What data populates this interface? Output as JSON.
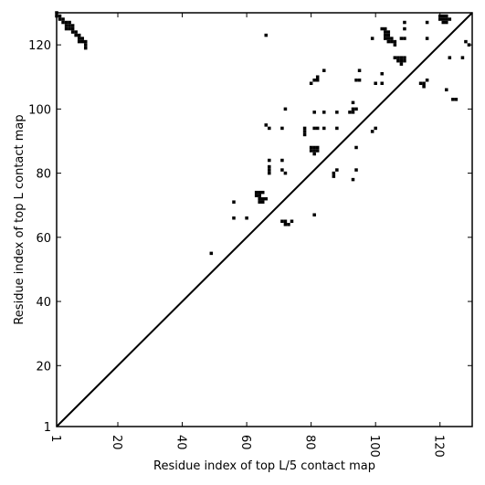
{
  "chart_data": {
    "type": "heatmap",
    "xlabel": "Residue index of top L/5 contact map",
    "ylabel": "Residue index of top L contact map",
    "xlim": [
      1,
      130
    ],
    "ylim": [
      1,
      130
    ],
    "x_ticks": [
      {
        "value": 1,
        "label": "1"
      },
      {
        "value": 20,
        "label": "20"
      },
      {
        "value": 40,
        "label": "40"
      },
      {
        "value": 60,
        "label": "60"
      },
      {
        "value": 80,
        "label": "80"
      },
      {
        "value": 100,
        "label": "100"
      },
      {
        "value": 120,
        "label": "120"
      }
    ],
    "y_ticks": [
      {
        "value": 1,
        "label": "1"
      },
      {
        "value": 20,
        "label": "20"
      },
      {
        "value": 40,
        "label": "40"
      },
      {
        "value": 60,
        "label": "60"
      },
      {
        "value": 80,
        "label": "80"
      },
      {
        "value": 100,
        "label": "100"
      },
      {
        "value": 120,
        "label": "120"
      }
    ],
    "diagonal": true,
    "color": "#000000",
    "contacts": [
      [
        1,
        130
      ],
      [
        1,
        129
      ],
      [
        2,
        129
      ],
      [
        2,
        128
      ],
      [
        3,
        128
      ],
      [
        3,
        127
      ],
      [
        4,
        127
      ],
      [
        5,
        127
      ],
      [
        4,
        126
      ],
      [
        5,
        126
      ],
      [
        6,
        126
      ],
      [
        4,
        125
      ],
      [
        5,
        125
      ],
      [
        6,
        125
      ],
      [
        6,
        124
      ],
      [
        7,
        124
      ],
      [
        7,
        123
      ],
      [
        8,
        123
      ],
      [
        8,
        122
      ],
      [
        9,
        122
      ],
      [
        8,
        121
      ],
      [
        9,
        121
      ],
      [
        10,
        121
      ],
      [
        10,
        120
      ],
      [
        10,
        119
      ],
      [
        49,
        55
      ],
      [
        56,
        71
      ],
      [
        56,
        66
      ],
      [
        60,
        66
      ],
      [
        63,
        74
      ],
      [
        64,
        74
      ],
      [
        65,
        74
      ],
      [
        63,
        73
      ],
      [
        64,
        73
      ],
      [
        64,
        72
      ],
      [
        65,
        72
      ],
      [
        66,
        72
      ],
      [
        64,
        71
      ],
      [
        65,
        71
      ],
      [
        66,
        123
      ],
      [
        66,
        95
      ],
      [
        67,
        94
      ],
      [
        67,
        84
      ],
      [
        67,
        82
      ],
      [
        67,
        81
      ],
      [
        67,
        80
      ],
      [
        71,
        94
      ],
      [
        71,
        84
      ],
      [
        71,
        81
      ],
      [
        72,
        80
      ],
      [
        72,
        100
      ],
      [
        71,
        65
      ],
      [
        72,
        65
      ],
      [
        72,
        64
      ],
      [
        73,
        64
      ],
      [
        74,
        65
      ],
      [
        78,
        94
      ],
      [
        78,
        93
      ],
      [
        78,
        92
      ],
      [
        80,
        88
      ],
      [
        81,
        88
      ],
      [
        82,
        88
      ],
      [
        80,
        87
      ],
      [
        81,
        87
      ],
      [
        82,
        87
      ],
      [
        81,
        86
      ],
      [
        80,
        108
      ],
      [
        81,
        109
      ],
      [
        82,
        109
      ],
      [
        82,
        110
      ],
      [
        84,
        112
      ],
      [
        81,
        99
      ],
      [
        84,
        99
      ],
      [
        81,
        94
      ],
      [
        82,
        94
      ],
      [
        84,
        94
      ],
      [
        81,
        67
      ],
      [
        87,
        80
      ],
      [
        87,
        79
      ],
      [
        88,
        81
      ],
      [
        88,
        99
      ],
      [
        88,
        94
      ],
      [
        92,
        99
      ],
      [
        93,
        99
      ],
      [
        93,
        100
      ],
      [
        94,
        100
      ],
      [
        93,
        102
      ],
      [
        93,
        78
      ],
      [
        94,
        81
      ],
      [
        94,
        88
      ],
      [
        94,
        109
      ],
      [
        95,
        109
      ],
      [
        95,
        112
      ],
      [
        99,
        122
      ],
      [
        99,
        93
      ],
      [
        100,
        94
      ],
      [
        100,
        108
      ],
      [
        102,
        108
      ],
      [
        102,
        111
      ],
      [
        102,
        125
      ],
      [
        103,
        125
      ],
      [
        103,
        124
      ],
      [
        104,
        124
      ],
      [
        103,
        123
      ],
      [
        104,
        123
      ],
      [
        103,
        122
      ],
      [
        104,
        122
      ],
      [
        105,
        122
      ],
      [
        104,
        121
      ],
      [
        105,
        121
      ],
      [
        106,
        121
      ],
      [
        106,
        120
      ],
      [
        106,
        116
      ],
      [
        107,
        116
      ],
      [
        108,
        116
      ],
      [
        109,
        116
      ],
      [
        107,
        115
      ],
      [
        108,
        115
      ],
      [
        109,
        115
      ],
      [
        108,
        114
      ],
      [
        108,
        122
      ],
      [
        109,
        122
      ],
      [
        109,
        125
      ],
      [
        109,
        127
      ],
      [
        114,
        108
      ],
      [
        115,
        108
      ],
      [
        115,
        107
      ],
      [
        116,
        109
      ],
      [
        116,
        127
      ],
      [
        116,
        122
      ],
      [
        120,
        129
      ],
      [
        121,
        129
      ],
      [
        122,
        129
      ],
      [
        120,
        128
      ],
      [
        121,
        128
      ],
      [
        122,
        128
      ],
      [
        123,
        128
      ],
      [
        121,
        127
      ],
      [
        122,
        127
      ],
      [
        122,
        106
      ],
      [
        123,
        116
      ],
      [
        124,
        103
      ],
      [
        125,
        103
      ],
      [
        127,
        116
      ],
      [
        128,
        121
      ],
      [
        129,
        120
      ]
    ]
  }
}
